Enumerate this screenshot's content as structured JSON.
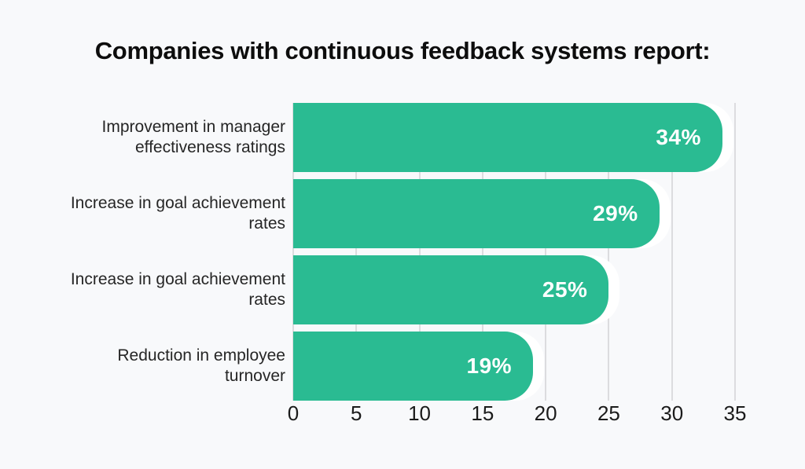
{
  "chart_data": {
    "type": "bar",
    "orientation": "horizontal",
    "title": "Companies with continuous feedback systems report:",
    "bars": [
      {
        "lines": [
          "Improvement in manager",
          "effectiveness ratings"
        ],
        "value": 34,
        "value_label": "34%"
      },
      {
        "lines": [
          "Increase in goal achievement",
          "rates"
        ],
        "value": 29,
        "value_label": "29%"
      },
      {
        "lines": [
          "Increase in goal achievement",
          "rates"
        ],
        "value": 25,
        "value_label": "25%"
      },
      {
        "lines": [
          "Reduction in employee",
          "turnover"
        ],
        "value": 19,
        "value_label": "19%"
      }
    ],
    "xlim": [
      0,
      35
    ],
    "xtick_values": [
      0,
      5,
      10,
      15,
      20,
      25,
      30,
      35
    ],
    "xtick_labels": [
      "0",
      "5",
      "10",
      "15",
      "20",
      "25",
      "30",
      "35"
    ],
    "grid": "vertical",
    "legend": "none",
    "colors": {
      "bar": "#2abb92",
      "bar_halo": "#ffffff",
      "value_text": "#ffffff",
      "gridline": "#dcdcdf",
      "background": "#f8f9fb",
      "title_text": "#0d0d0d",
      "category_text": "#262626",
      "axis_text": "#1b1b1b"
    }
  }
}
